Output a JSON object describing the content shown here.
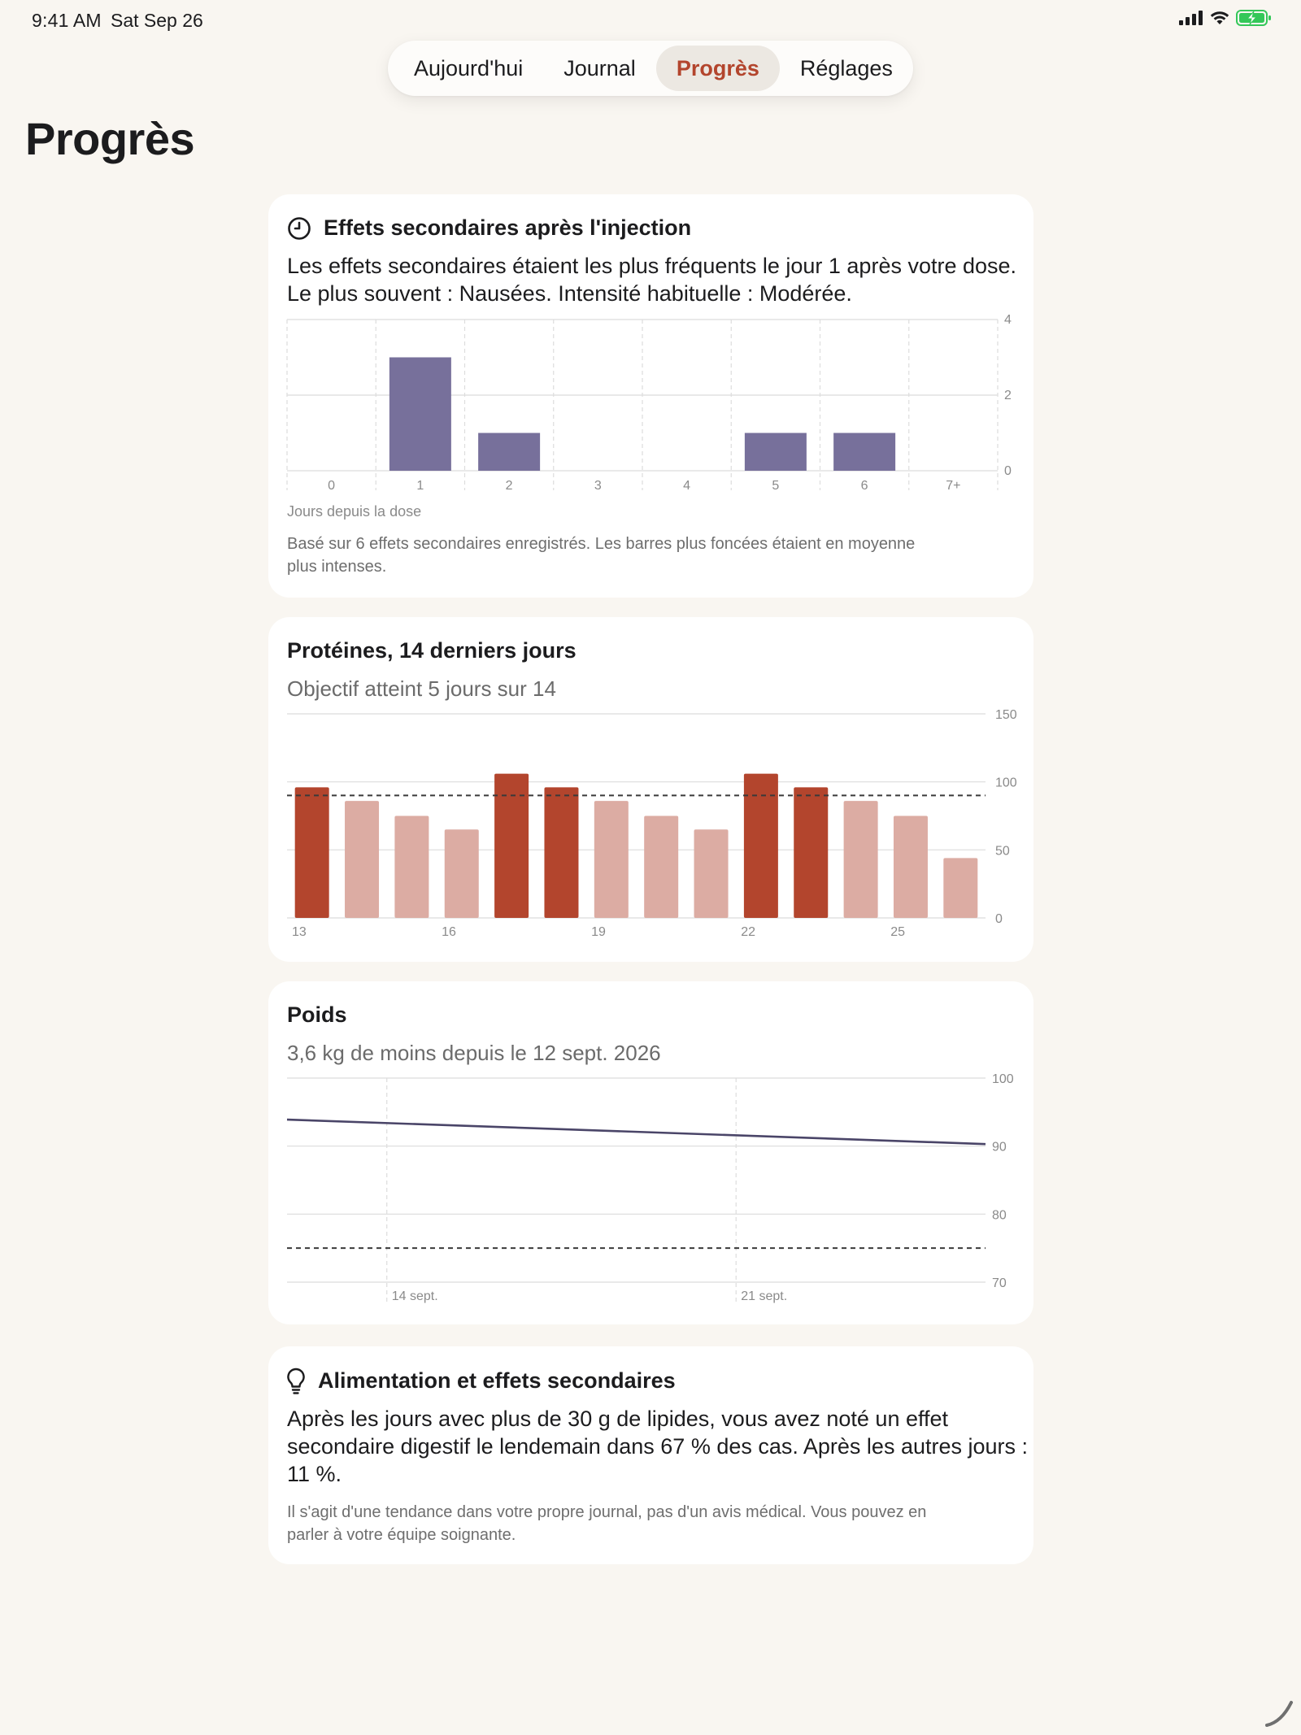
{
  "status_bar": {
    "time": "9:41 AM",
    "date": "Sat Sep 26"
  },
  "tabs": [
    {
      "label": "Aujourd'hui",
      "active": false
    },
    {
      "label": "Journal",
      "active": false
    },
    {
      "label": "Progrès",
      "active": true
    },
    {
      "label": "Réglages",
      "active": false
    }
  ],
  "page_title": "Progrès",
  "colors": {
    "accent": "#b3452d",
    "background": "#f9f6f1",
    "side_effect_bar": "#77709b",
    "protein_met": "#b3452d",
    "protein_missed": "#dcaca3",
    "weight_line": "#4a4568"
  },
  "side_effects_card": {
    "icon": "clock-icon",
    "title": "Effets secondaires après l'injection",
    "summary_line1": "Les effets secondaires étaient les plus fréquents le jour 1 après votre dose.",
    "summary_line2": "Le plus souvent : Nausées. Intensité habituelle : Modérée.",
    "x_caption": "Jours depuis la dose",
    "note_line1": "Basé sur 6 effets secondaires enregistrés. Les barres plus foncées étaient en moyenne",
    "note_line2": "plus intenses."
  },
  "protein_card": {
    "title": "Protéines, 14 derniers jours",
    "subtitle": "Objectif atteint 5 jours sur 14"
  },
  "weight_card": {
    "title": "Poids",
    "subtitle": "3,6 kg de moins depuis le 12 sept. 2026"
  },
  "insight_card": {
    "icon": "lightbulb-icon",
    "title": "Alimentation et effets secondaires",
    "text_line1": "Après les jours avec plus de 30 g de lipides, vous avez noté un effet",
    "text_line2": "secondaire digestif le lendemain dans 67 % des cas. Après les autres jours :",
    "text_line3": "11 %.",
    "note_line1": "Il s'agit d'une tendance dans votre propre journal, pas d'un avis médical. Vous pouvez en",
    "note_line2": "parler à votre équipe soignante."
  },
  "chart_data": [
    {
      "type": "bar",
      "categories": [
        "0",
        "1",
        "2",
        "3",
        "4",
        "5",
        "6",
        "7+"
      ],
      "values": [
        0,
        3,
        1,
        0,
        0,
        1,
        1,
        0
      ],
      "xlabel": "Jours depuis la dose",
      "ylabel": "",
      "ylim": [
        0,
        4
      ],
      "yticks": [
        0,
        2,
        4
      ],
      "grid": true
    },
    {
      "type": "bar",
      "x": [
        13,
        14,
        15,
        16,
        17,
        18,
        19,
        20,
        21,
        22,
        23,
        24,
        25,
        26
      ],
      "xticks": [
        "13",
        "16",
        "19",
        "22",
        "25"
      ],
      "values": [
        96,
        86,
        75,
        65,
        106,
        96,
        86,
        75,
        65,
        106,
        96,
        86,
        75,
        44
      ],
      "goal": 90,
      "goal_met": [
        true,
        false,
        false,
        false,
        true,
        true,
        false,
        false,
        false,
        true,
        true,
        false,
        false,
        false
      ],
      "ylim": [
        0,
        150
      ],
      "yticks": [
        0,
        50,
        100,
        150
      ],
      "grid": true
    },
    {
      "type": "line",
      "x": [
        "2026-09-12",
        "2026-09-26"
      ],
      "values": [
        93.9,
        90.3
      ],
      "xticks": [
        "14 sept.",
        "21 sept."
      ],
      "target": 75,
      "ylim": [
        70,
        100
      ],
      "yticks": [
        70,
        80,
        90,
        100
      ],
      "grid": true
    }
  ]
}
